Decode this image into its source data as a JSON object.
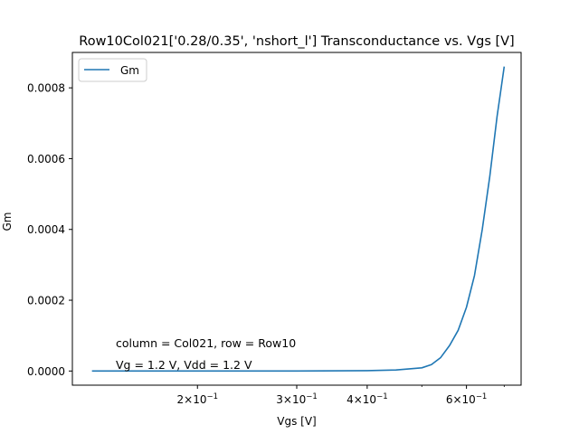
{
  "chart_data": {
    "type": "line",
    "title": "Row10Col021['0.28/0.35', 'nshort_l'] Transconductance vs. Vgs [V]",
    "xlabel": "Vgs [V]",
    "ylabel": "Gm",
    "xscale": "log",
    "xlim": [
      0.12,
      0.75
    ],
    "ylim": [
      -4e-05,
      0.0009
    ],
    "xticks": [
      {
        "value": 0.2,
        "label_base": "2×10",
        "label_exp": "−1"
      },
      {
        "value": 0.3,
        "label_base": "3×10",
        "label_exp": "−1"
      },
      {
        "value": 0.4,
        "label_base": "4×10",
        "label_exp": "−1"
      },
      {
        "value": 0.6,
        "label_base": "6×10",
        "label_exp": "−1"
      }
    ],
    "xminor": [
      0.5,
      0.7
    ],
    "yticks": [
      {
        "value": 0.0,
        "label": "0.0000"
      },
      {
        "value": 0.0002,
        "label": "0.0002"
      },
      {
        "value": 0.0004,
        "label": "0.0004"
      },
      {
        "value": 0.0006,
        "label": "0.0006"
      },
      {
        "value": 0.0008,
        "label": "0.0008"
      }
    ],
    "grid": false,
    "legend": {
      "position": "top-left",
      "entries": [
        "Gm"
      ]
    },
    "annotations": [
      "column = Col021, row = Row10",
      "Vg = 1.2 V, Vdd = 1.2 V"
    ],
    "series": [
      {
        "name": "Gm",
        "color": "#1f77b4",
        "x": [
          0.13,
          0.2,
          0.3,
          0.4,
          0.45,
          0.5,
          0.52,
          0.54,
          0.56,
          0.58,
          0.6,
          0.62,
          0.64,
          0.66,
          0.68,
          0.69,
          0.7
        ],
        "y": [
          0.0,
          0.0,
          0.0,
          1e-06,
          3e-06,
          9e-06,
          1.8e-05,
          3.8e-05,
          7.2e-05,
          0.000115,
          0.00018,
          0.00027,
          0.0004,
          0.00055,
          0.00072,
          0.00079,
          0.00086
        ]
      }
    ]
  }
}
